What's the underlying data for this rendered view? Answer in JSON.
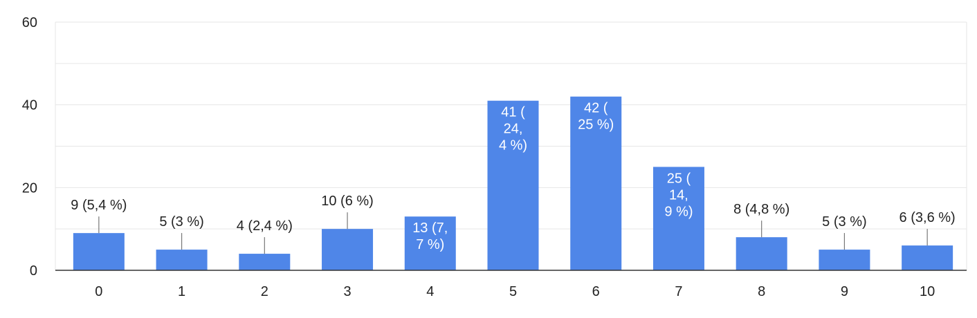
{
  "chart_data": {
    "type": "bar",
    "categories": [
      "0",
      "1",
      "2",
      "3",
      "4",
      "5",
      "6",
      "7",
      "8",
      "9",
      "10"
    ],
    "values": [
      9,
      5,
      4,
      10,
      13,
      41,
      42,
      25,
      8,
      5,
      6
    ],
    "data_labels": [
      [
        "9 (5,4 %)"
      ],
      [
        "5 (3 %)"
      ],
      [
        "4 (2,4 %)"
      ],
      [
        "10 (6 %)"
      ],
      [
        "13 (7,",
        "7 %)"
      ],
      [
        "41 (",
        "24,",
        "4 %)"
      ],
      [
        "42 (",
        "25 %)"
      ],
      [
        "25 (",
        "14,",
        "9 %)"
      ],
      [
        "8 (4,8 %)"
      ],
      [
        "5 (3 %)"
      ],
      [
        "6 (3,6 %)"
      ]
    ],
    "y_ticks": [
      "0",
      "20",
      "40",
      "60"
    ],
    "ylim": [
      0,
      60
    ],
    "gridlines": true,
    "legend": "none",
    "title": "",
    "xlabel": "",
    "ylabel": ""
  },
  "colors": {
    "bar": "#4f86e8",
    "grid": "#e6e6e6",
    "axis": "#333333",
    "text": "#222222",
    "label_inside": "#ffffff",
    "leader": "#777777"
  }
}
